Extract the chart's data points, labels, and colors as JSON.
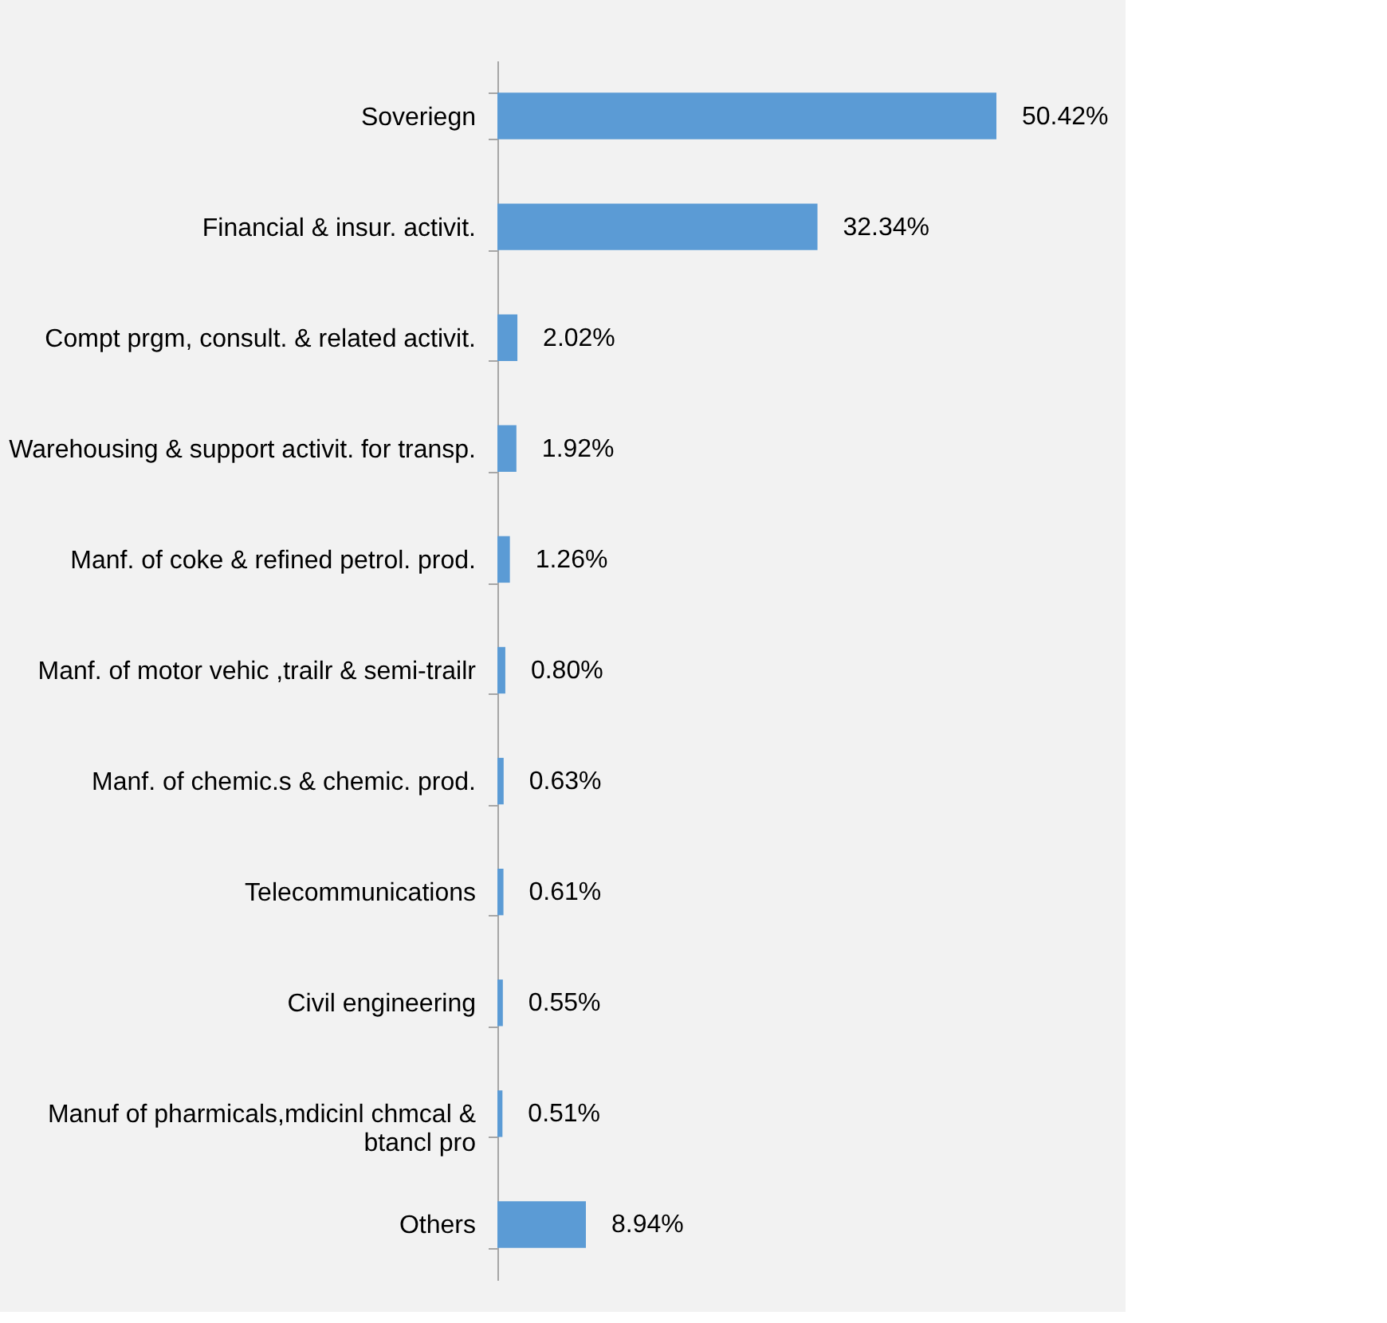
{
  "chart_data": {
    "type": "bar",
    "orientation": "horizontal",
    "categories": [
      "Soveriegn",
      "Financial & insur. activit.",
      "Compt prgm, consult. & related activit.",
      "Warehousing & support activit. for transp.",
      "Manf. of coke & refined petrol. prod.",
      "Manf. of motor vehic ,trailr & semi-trailr",
      "Manf. of chemic.s & chemic. prod.",
      "Telecommunications",
      "Civil engineering",
      "Manuf of pharmicals,mdicinl chmcal & btancl pro",
      "Others"
    ],
    "values": [
      50.42,
      32.34,
      2.02,
      1.92,
      1.26,
      0.8,
      0.63,
      0.61,
      0.55,
      0.51,
      8.94
    ],
    "value_labels": [
      "50.42%",
      "32.34%",
      "2.02%",
      "1.92%",
      "1.26%",
      "0.80%",
      "0.63%",
      "0.61%",
      "0.55%",
      "0.51%",
      "8.94%"
    ],
    "color": "#5b9bd5",
    "tick_labels": "y"
  }
}
